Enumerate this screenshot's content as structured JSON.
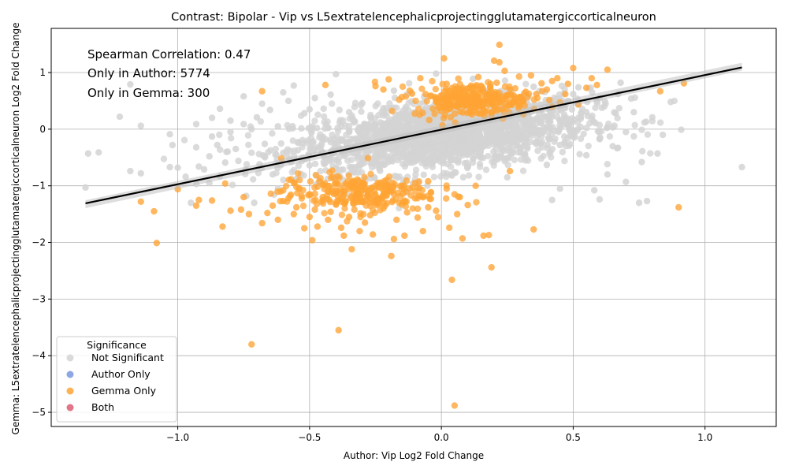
{
  "chart_data": {
    "type": "scatter",
    "title": "Contrast: Bipolar - Vip vs L5extratelencephalicprojectingglutamatergiccorticalneuron",
    "xlabel": "Author: Vip Log2 Fold Change",
    "ylabel": "Gemma: L5extratelencephalicprojectingglutamatergiccorticalneuron Log2 Fold Change",
    "xlim": [
      -1.48,
      1.27
    ],
    "ylim": [
      -5.25,
      1.78
    ],
    "x_ticks": [
      -1.0,
      -0.5,
      0.0,
      0.5,
      1.0
    ],
    "x_tick_labels": [
      "−1.0",
      "−0.5",
      "0.0",
      "0.5",
      "1.0"
    ],
    "y_ticks": [
      -5,
      -4,
      -3,
      -2,
      -1,
      0,
      1
    ],
    "y_tick_labels": [
      "−5",
      "−4",
      "−3",
      "−2",
      "−1",
      "0",
      "1"
    ],
    "grid": true,
    "annotations": [
      "Spearman Correlation: 0.47",
      "Only in Author: 5774",
      "Only in Gemma: 300"
    ],
    "regression_line": {
      "x": [
        -1.35,
        1.14
      ],
      "y": [
        -1.31,
        1.09
      ]
    },
    "legend": {
      "title": "Significance",
      "placement": "lower-left",
      "entries": [
        {
          "label": "Not Significant",
          "color": "#d3d3d3"
        },
        {
          "label": "Author Only",
          "color": "#7b96e0"
        },
        {
          "label": "Gemma Only",
          "color": "#ffa434"
        },
        {
          "label": "Both",
          "color": "#de5d74"
        }
      ]
    },
    "series": [
      {
        "name": "Not Significant",
        "color": "#d3d3d3",
        "note_count": 5774,
        "points": [
          [
            -1.35,
            -1.03
          ],
          [
            -1.34,
            -0.43
          ],
          [
            -1.3,
            -0.41
          ],
          [
            -1.22,
            0.22
          ],
          [
            -1.18,
            0.79
          ],
          [
            -1.18,
            -0.74
          ],
          [
            -1.14,
            0.06
          ],
          [
            -1.14,
            -0.78
          ],
          [
            -1.03,
            -0.09
          ],
          [
            -1.02,
            -0.28
          ],
          [
            -1.03,
            -0.67
          ],
          [
            -1.0,
            -0.68
          ],
          [
            -0.97,
            -0.84
          ],
          [
            -0.95,
            -1.3
          ],
          [
            -0.93,
            0.09
          ],
          [
            -0.92,
            -0.66
          ],
          [
            -0.9,
            -0.71
          ],
          [
            -0.88,
            -0.48
          ],
          [
            -0.87,
            -0.13
          ],
          [
            -0.87,
            0.2
          ],
          [
            -0.85,
            -0.28
          ],
          [
            -0.84,
            0.36
          ],
          [
            -0.84,
            -0.83
          ],
          [
            -0.82,
            -0.59
          ],
          [
            -0.8,
            0.15
          ],
          [
            -0.78,
            -0.35
          ],
          [
            -0.77,
            -0.56
          ],
          [
            -0.75,
            0.09
          ],
          [
            -0.74,
            -1.18
          ],
          [
            -0.72,
            0.0
          ],
          [
            -0.7,
            0.21
          ],
          [
            -0.69,
            -0.62
          ],
          [
            -0.67,
            -0.26
          ],
          [
            -0.65,
            0.34
          ],
          [
            -0.64,
            -0.8
          ],
          [
            -0.62,
            0.05
          ],
          [
            -0.6,
            -0.42
          ],
          [
            -0.58,
            0.5
          ],
          [
            -0.56,
            0.77
          ],
          [
            -0.55,
            -0.88
          ],
          [
            -0.52,
            0.28
          ],
          [
            -0.5,
            -0.64
          ],
          [
            -0.48,
            0.55
          ],
          [
            -0.45,
            -0.18
          ],
          [
            -0.42,
            0.61
          ],
          [
            -0.4,
            0.97
          ],
          [
            -0.38,
            -0.36
          ],
          [
            -0.35,
            0.3
          ],
          [
            -0.33,
            -0.71
          ],
          [
            -0.3,
            0.46
          ],
          [
            -0.28,
            0.08
          ],
          [
            -0.25,
            -0.48
          ],
          [
            -0.22,
            0.37
          ],
          [
            -0.2,
            -0.9
          ],
          [
            -0.18,
            0.68
          ],
          [
            -0.15,
            -0.22
          ],
          [
            -0.12,
            0.24
          ],
          [
            -0.1,
            -0.57
          ],
          [
            -0.08,
            0.45
          ],
          [
            -0.05,
            -0.09
          ],
          [
            -0.02,
            0.98
          ],
          [
            0.0,
            -0.34
          ],
          [
            0.03,
            0.15
          ],
          [
            0.05,
            -0.76
          ],
          [
            0.08,
            0.41
          ],
          [
            0.1,
            -0.05
          ],
          [
            0.12,
            0.89
          ],
          [
            0.15,
            -0.5
          ],
          [
            0.18,
            0.27
          ],
          [
            0.2,
            -0.19
          ],
          [
            0.22,
            0.66
          ],
          [
            0.25,
            -0.85
          ],
          [
            0.28,
            0.11
          ],
          [
            0.3,
            -0.39
          ],
          [
            0.33,
            0.58
          ],
          [
            0.35,
            -0.02
          ],
          [
            0.38,
            0.35
          ],
          [
            0.4,
            -0.63
          ],
          [
            0.42,
            0.22
          ],
          [
            0.45,
            -0.28
          ],
          [
            0.48,
            0.5
          ],
          [
            0.5,
            -0.1
          ],
          [
            0.52,
            0.74
          ],
          [
            0.55,
            -0.46
          ],
          [
            0.57,
            0.19
          ],
          [
            0.6,
            -0.17
          ],
          [
            0.62,
            0.49
          ],
          [
            0.63,
            -0.8
          ],
          [
            0.65,
            0.03
          ],
          [
            0.67,
            -0.33
          ],
          [
            0.68,
            0.82
          ],
          [
            0.7,
            -0.05
          ],
          [
            0.72,
            0.54
          ],
          [
            0.75,
            -1.3
          ],
          [
            0.76,
            -0.58
          ],
          [
            0.78,
            -1.27
          ],
          [
            0.8,
            0.21
          ],
          [
            0.82,
            -0.43
          ],
          [
            0.84,
            -0.1
          ],
          [
            0.87,
            0.48
          ],
          [
            0.91,
            -0.01
          ],
          [
            1.14,
            -0.67
          ],
          [
            0.7,
            -0.93
          ],
          [
            0.6,
            -1.24
          ],
          [
            0.58,
            -1.08
          ],
          [
            0.45,
            -1.05
          ],
          [
            0.42,
            -1.25
          ],
          [
            -0.62,
            -1.05
          ],
          [
            -0.71,
            -1.3
          ],
          [
            0.65,
            -0.3
          ],
          [
            0.73,
            0.3
          ],
          [
            0.67,
            0.62
          ],
          [
            0.6,
            0.55
          ],
          [
            0.5,
            0.62
          ],
          [
            0.55,
            0.3
          ],
          [
            0.45,
            0.15
          ],
          [
            0.35,
            0.75
          ],
          [
            -0.93,
            -0.32
          ],
          [
            -0.88,
            -0.95
          ],
          [
            -0.8,
            -0.05
          ],
          [
            -0.75,
            0.58
          ],
          [
            -0.68,
            0.45
          ],
          [
            -0.6,
            0.65
          ],
          [
            -0.5,
            0.35
          ]
        ]
      },
      {
        "name": "Author Only",
        "color": "#7b96e0",
        "points": []
      },
      {
        "name": "Gemma Only",
        "color": "#ffa434",
        "note_count": 300,
        "points": [
          [
            -1.14,
            -1.28
          ],
          [
            -1.09,
            -1.45
          ],
          [
            -1.08,
            -2.01
          ],
          [
            -1.0,
            -1.06
          ],
          [
            -0.93,
            -1.35
          ],
          [
            -0.92,
            -1.25
          ],
          [
            -0.87,
            -1.26
          ],
          [
            -0.83,
            -1.72
          ],
          [
            -0.82,
            -0.96
          ],
          [
            -0.8,
            -1.44
          ],
          [
            -0.76,
            -1.42
          ],
          [
            -0.75,
            -1.2
          ],
          [
            -0.73,
            -1.5
          ],
          [
            -0.72,
            -3.8
          ],
          [
            -0.68,
            0.67
          ],
          [
            -0.68,
            -1.66
          ],
          [
            -0.66,
            -1.48
          ],
          [
            -0.64,
            -1.35
          ],
          [
            -0.62,
            -1.6
          ],
          [
            -0.6,
            -1.27
          ],
          [
            -0.58,
            -1.22
          ],
          [
            -0.56,
            -1.5
          ],
          [
            -0.55,
            -1.38
          ],
          [
            -0.53,
            -1.18
          ],
          [
            -0.52,
            -1.75
          ],
          [
            -0.5,
            -1.55
          ],
          [
            -0.49,
            -1.96
          ],
          [
            -0.48,
            -1.42
          ],
          [
            -0.47,
            -1.72
          ],
          [
            -0.45,
            -1.25
          ],
          [
            -0.44,
            0.78
          ],
          [
            -0.43,
            -1.6
          ],
          [
            -0.42,
            -1.46
          ],
          [
            -0.4,
            -1.32
          ],
          [
            -0.39,
            -3.55
          ],
          [
            -0.38,
            -1.74
          ],
          [
            -0.37,
            -1.88
          ],
          [
            -0.35,
            -1.55
          ],
          [
            -0.34,
            -2.12
          ],
          [
            -0.33,
            -1.42
          ],
          [
            -0.31,
            -1.8
          ],
          [
            -0.3,
            -1.28
          ],
          [
            -0.29,
            -1.65
          ],
          [
            -0.28,
            -1.1
          ],
          [
            -0.27,
            -1.52
          ],
          [
            -0.26,
            -1.86
          ],
          [
            -0.25,
            0.76
          ],
          [
            -0.24,
            -1.22
          ],
          [
            -0.22,
            -1.4
          ],
          [
            -0.2,
            0.88
          ],
          [
            -0.19,
            -2.24
          ],
          [
            -0.18,
            -1.94
          ],
          [
            -0.17,
            -1.6
          ],
          [
            -0.16,
            -1.3
          ],
          [
            -0.14,
            -1.88
          ],
          [
            -0.13,
            -1.47
          ],
          [
            -0.12,
            -1.05
          ],
          [
            -0.1,
            -1.22
          ],
          [
            -0.09,
            -1.56
          ],
          [
            -0.08,
            0.9
          ],
          [
            -0.07,
            -1.8
          ],
          [
            -0.05,
            -1.38
          ],
          [
            -0.04,
            -1.12
          ],
          [
            -0.02,
            -1.44
          ],
          [
            0.01,
            1.25
          ],
          [
            0.02,
            -1.05
          ],
          [
            0.03,
            -1.74
          ],
          [
            0.04,
            -2.66
          ],
          [
            0.05,
            -1.15
          ],
          [
            0.05,
            -4.88
          ],
          [
            0.06,
            -1.5
          ],
          [
            0.07,
            -1.2
          ],
          [
            0.08,
            -1.93
          ],
          [
            0.1,
            -1.34
          ],
          [
            0.11,
            0.74
          ],
          [
            0.13,
            -1.0
          ],
          [
            0.14,
            0.92
          ],
          [
            0.16,
            -1.88
          ],
          [
            0.17,
            0.58
          ],
          [
            0.18,
            -1.87
          ],
          [
            0.19,
            -2.44
          ],
          [
            0.2,
            1.21
          ],
          [
            0.21,
            0.82
          ],
          [
            0.22,
            1.49
          ],
          [
            0.22,
            1.18
          ],
          [
            0.24,
            1.03
          ],
          [
            0.25,
            0.6
          ],
          [
            0.26,
            -0.74
          ],
          [
            0.28,
            0.72
          ],
          [
            0.3,
            0.55
          ],
          [
            0.32,
            0.66
          ],
          [
            0.34,
            0.95
          ],
          [
            0.35,
            -1.77
          ],
          [
            0.36,
            0.62
          ],
          [
            0.38,
            0.81
          ],
          [
            0.4,
            0.7
          ],
          [
            0.42,
            0.85
          ],
          [
            0.44,
            0.9
          ],
          [
            0.45,
            0.47
          ],
          [
            0.47,
            0.62
          ],
          [
            0.48,
            0.8
          ],
          [
            0.5,
            1.08
          ],
          [
            0.52,
            0.44
          ],
          [
            0.55,
            0.73
          ],
          [
            0.57,
            0.9
          ],
          [
            0.59,
            0.78
          ],
          [
            0.63,
            1.05
          ],
          [
            0.83,
            0.67
          ],
          [
            0.9,
            -1.38
          ],
          [
            0.92,
            0.81
          ],
          [
            -0.6,
            -1.08
          ],
          [
            -0.55,
            -1.02
          ],
          [
            -0.5,
            -1.15
          ],
          [
            -0.45,
            -0.98
          ],
          [
            -0.4,
            -1.08
          ],
          [
            -0.35,
            -1.05
          ],
          [
            -0.3,
            -0.95
          ],
          [
            -0.25,
            -1.0
          ],
          [
            -0.2,
            -1.02
          ],
          [
            -0.15,
            -1.0
          ],
          [
            -0.1,
            -0.95
          ],
          [
            -0.05,
            -0.92
          ],
          [
            -0.45,
            -1.2
          ],
          [
            -0.38,
            -1.28
          ],
          [
            -0.32,
            -1.22
          ],
          [
            -0.28,
            -1.18
          ],
          [
            -0.18,
            -1.15
          ],
          [
            -0.02,
            0.55
          ],
          [
            0.0,
            0.45
          ],
          [
            0.04,
            0.6
          ],
          [
            0.06,
            0.52
          ],
          [
            0.08,
            0.68
          ],
          [
            0.12,
            0.48
          ],
          [
            0.15,
            0.7
          ],
          [
            0.18,
            0.5
          ],
          [
            0.2,
            0.62
          ],
          [
            0.24,
            0.45
          ],
          [
            0.28,
            0.55
          ],
          [
            -0.06,
            0.62
          ],
          [
            -0.12,
            0.68
          ],
          [
            -0.16,
            0.52
          ],
          [
            -0.22,
            0.7
          ],
          [
            0.02,
            0.8
          ],
          [
            0.06,
            0.4
          ],
          [
            0.1,
            0.58
          ],
          [
            0.14,
            0.4
          ],
          [
            0.26,
            0.7
          ]
        ]
      },
      {
        "name": "Both",
        "color": "#de5d74",
        "points": []
      }
    ]
  }
}
